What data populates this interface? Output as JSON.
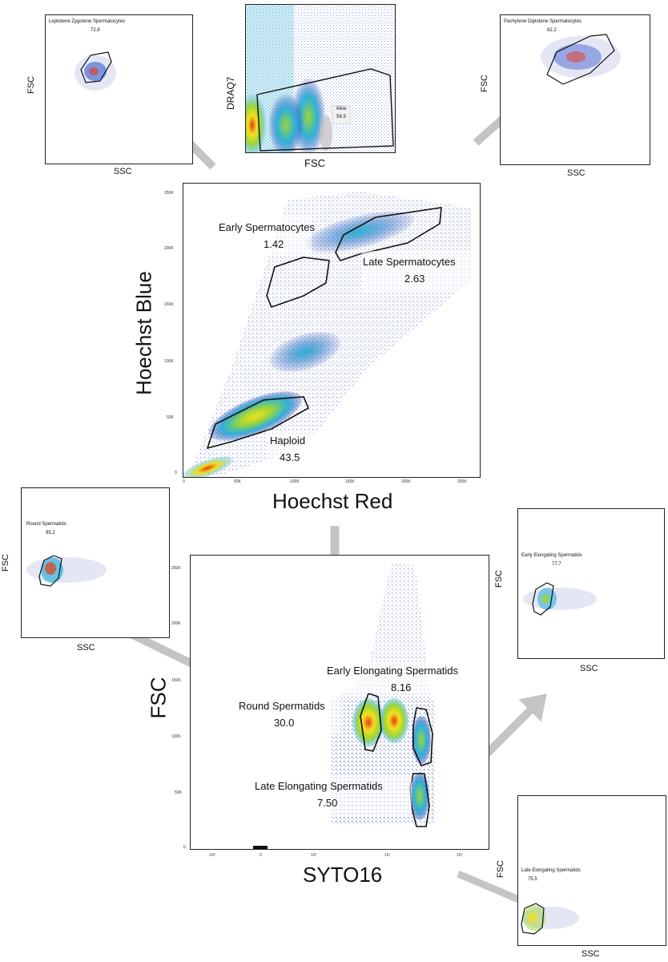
{
  "colors": {
    "arrow": "#c4c4c4",
    "gate": "#111111",
    "density_low": "#1f3fb0",
    "density_mid": "#2fb2d8",
    "density_high": "#9bd53a",
    "density_peak": "#f2e01e",
    "density_max": "#e83a16"
  },
  "alive_panel": {
    "y_title": "DRAQ7",
    "x_title": "FSC",
    "gate_name": "Alive",
    "gate_value": "56.5"
  },
  "lz_panel": {
    "title": "Leptotene Zygotene Spermatocytes",
    "value": "72.8",
    "x_title": "SSC",
    "y_title": "FSC"
  },
  "pd_panel": {
    "title": "Pachytene Diplotene Spermatocytes",
    "value": "82.2",
    "x_title": "SSC",
    "y_title": "FSC"
  },
  "hoechst_panel": {
    "y_title": "Hoechst Blue",
    "x_title": "Hoechst Red",
    "y_ticks": [
      "250K",
      "200K",
      "150K",
      "100K",
      "50K",
      "0"
    ],
    "x_ticks": [
      "0",
      "50K",
      "100K",
      "150K",
      "200K",
      "250K"
    ],
    "gates": [
      {
        "name": "Early Spermatocytes",
        "value": "1.42"
      },
      {
        "name": "Late Spermatocytes",
        "value": "2.63"
      },
      {
        "name": "Haploid",
        "value": "43.5"
      }
    ]
  },
  "rs_panel": {
    "title": "Round Spermatids",
    "value": "95.2",
    "x_title": "SSC",
    "y_title": "FSC"
  },
  "syto_panel": {
    "y_title": "FSC",
    "x_title": "SYTO16",
    "y_ticks": [
      "250K",
      "200K",
      "150K",
      "100K",
      "50K",
      "0"
    ],
    "x_ticks": [
      "-10³",
      "0",
      "10³",
      "10⁴",
      "10⁵"
    ],
    "gates": [
      {
        "name": "Early Elongating Spermatids",
        "value": "8.16"
      },
      {
        "name": "Round Spermatids",
        "value": "30.0"
      },
      {
        "name": "Late Elongating Spermatids",
        "value": "7.50"
      }
    ]
  },
  "ee_panel": {
    "title": "Early Elongating Spermatids",
    "value": "77.7",
    "x_title": "SSC",
    "y_title": "FSC"
  },
  "le_panel": {
    "title": "Late Elongating Spermatids",
    "value": "75.5",
    "x_title": "SSC",
    "y_title": "FSC"
  }
}
